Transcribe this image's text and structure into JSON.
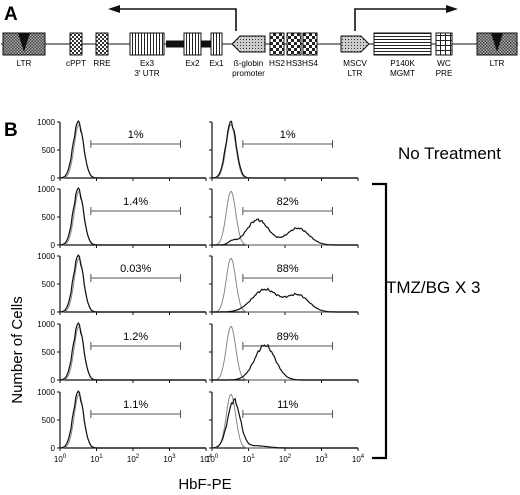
{
  "panel_a": {
    "letter": "A",
    "segments": [
      {
        "label": "LTR",
        "pattern": "ltr"
      },
      {
        "label": "cPPT",
        "pattern": "check"
      },
      {
        "label": "RRE",
        "pattern": "check"
      },
      {
        "label": "Ex3\n3' UTR",
        "pattern": "vlines"
      },
      {
        "label": "Ex2",
        "pattern": "vlines"
      },
      {
        "label": "Ex1",
        "pattern": "vlines"
      },
      {
        "label": "ß-globin\npromoter",
        "pattern": "dots"
      },
      {
        "label": "HS2",
        "pattern": "checker"
      },
      {
        "label": "HS3",
        "pattern": "checker"
      },
      {
        "label": "HS4",
        "pattern": "checker"
      },
      {
        "label": "MSCV\nLTR",
        "pattern": "dots"
      },
      {
        "label": "P140K\nMGMT",
        "pattern": "hlines"
      },
      {
        "label": "WC\nPRE",
        "pattern": "grid"
      },
      {
        "label": "LTR",
        "pattern": "ltr"
      }
    ]
  },
  "panel_b": {
    "letter": "B",
    "y_axis_title": "Number of Cells",
    "x_axis_title": "HbF-PE",
    "y_ticks": [
      "1000",
      "500",
      "0"
    ],
    "x_tick_exponents": [
      "0",
      "1",
      "2",
      "3",
      "4"
    ],
    "x_tick_base": "10",
    "label_no_treatment": "No Treatment",
    "label_treatment": "TMZ/BG X 3",
    "colors": {
      "line": "#111111",
      "control": "#888888",
      "bracket": "#000000"
    }
  },
  "chart_data": {
    "type": "histogram-grid",
    "x_scale": "log",
    "xlim": [
      1,
      10000
    ],
    "ylim": [
      0,
      1000
    ],
    "gate_x_range": [
      7,
      2000
    ],
    "rows": [
      {
        "group": "No Treatment",
        "left_percent": "1%",
        "right_percent": "1%"
      },
      {
        "group": "TMZ/BG X 3",
        "left_percent": "1.4%",
        "right_percent": "82%"
      },
      {
        "group": "TMZ/BG X 3",
        "left_percent": "0.03%",
        "right_percent": "88%"
      },
      {
        "group": "TMZ/BG X 3",
        "left_percent": "1.2%",
        "right_percent": "89%"
      },
      {
        "group": "TMZ/BG X 3",
        "left_percent": "1.1%",
        "right_percent": "11%"
      }
    ]
  }
}
